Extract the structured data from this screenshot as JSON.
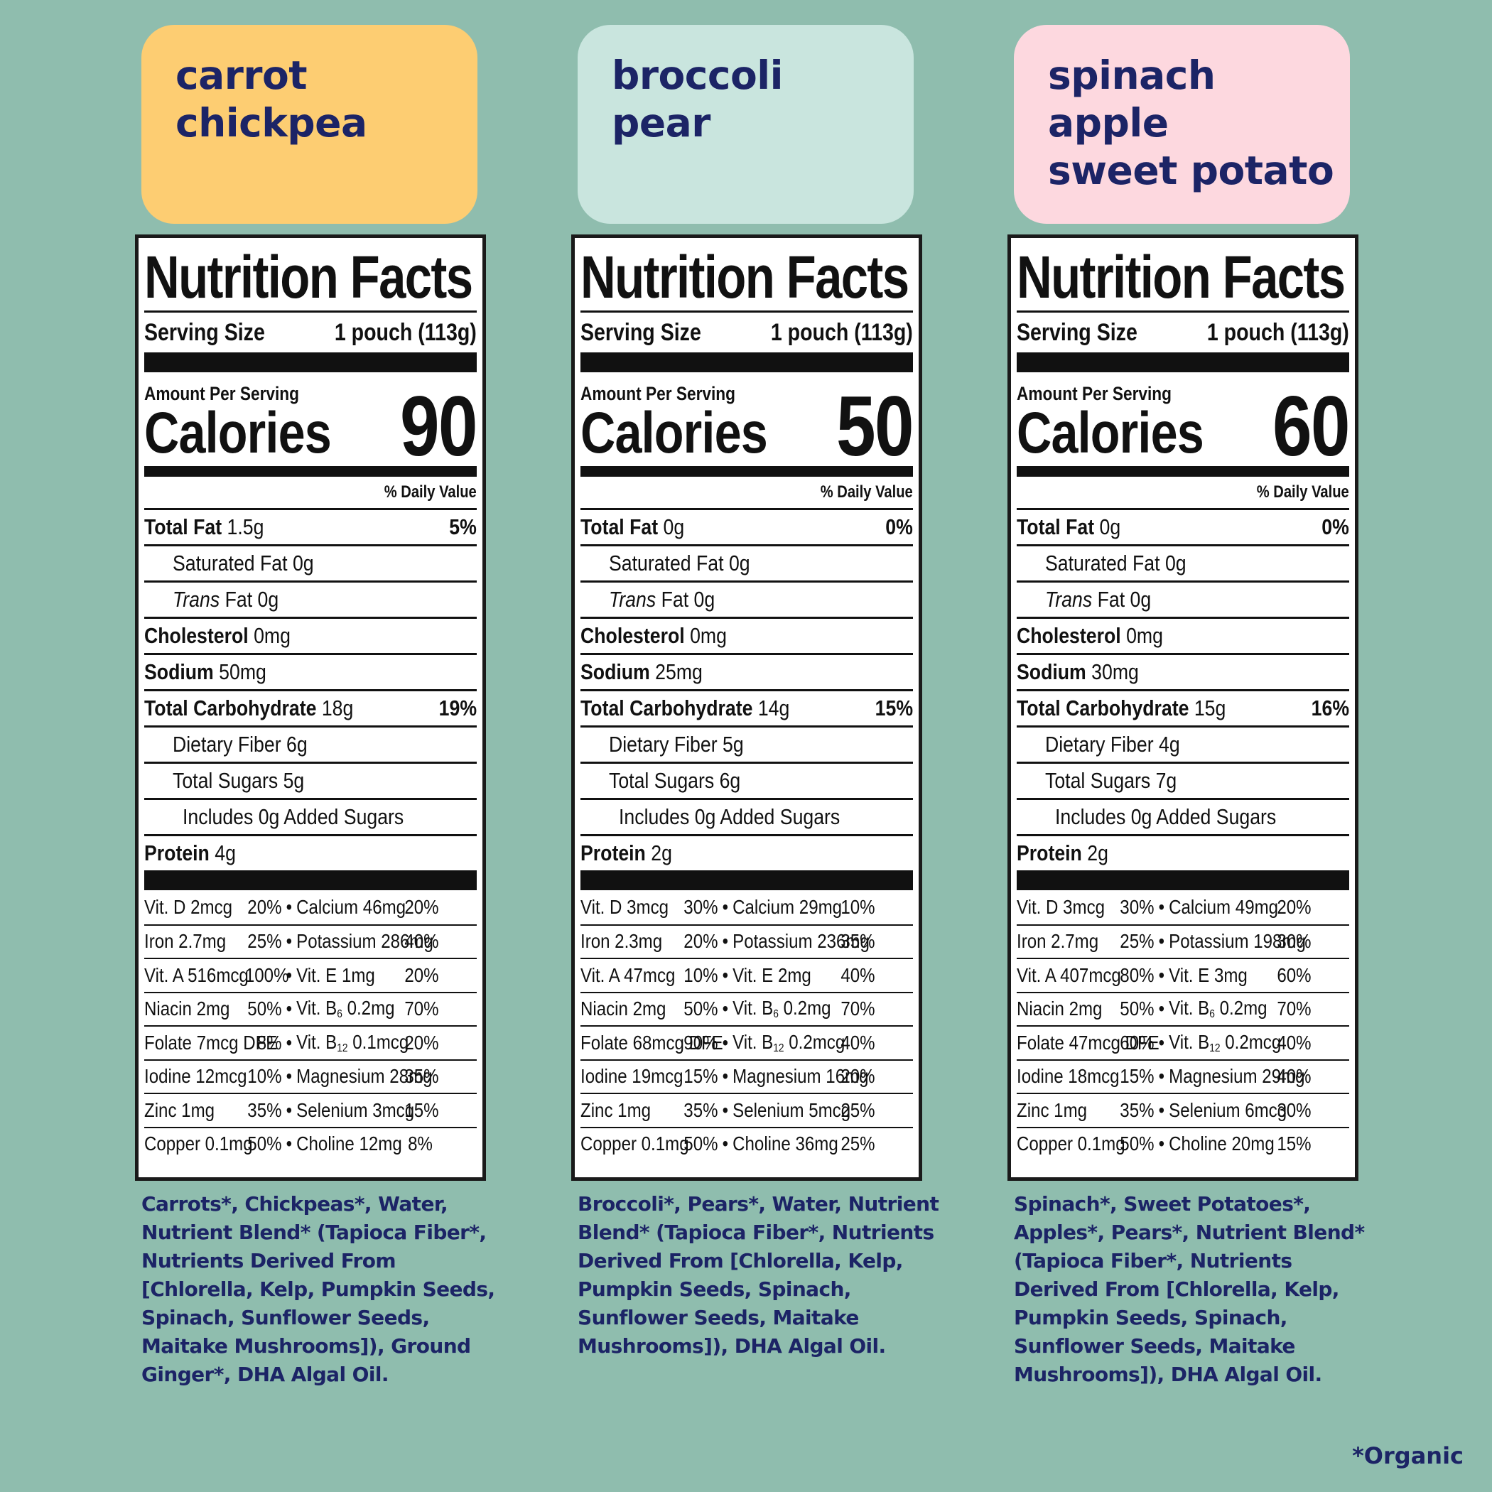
{
  "colors": {
    "background": "#8fbdae",
    "title_text": "#1c2466",
    "card_carrot": "#fdcd72",
    "card_broccoli": "#c9e5de",
    "card_spinach": "#fdd8df"
  },
  "products": [
    {
      "title_lines": [
        "carrot",
        "chickpea"
      ],
      "card_color": "#fdcd72",
      "nutrition": {
        "heading": "Nutrition Facts",
        "serving_label": "Serving Size",
        "serving_value": "1 pouch (113g)",
        "amount_label": "Amount Per Serving",
        "calories_label": "Calories",
        "calories_value": "90",
        "dv_label": "% Daily Value",
        "total_fat": {
          "label": "Total Fat",
          "amount": "1.5g",
          "dv": "5%"
        },
        "sat_fat": "Saturated Fat 0g",
        "trans_fat_italic": "Trans",
        "trans_fat_rest": " Fat 0g",
        "cholesterol": {
          "label": "Cholesterol",
          "amount": "0mg"
        },
        "sodium": {
          "label": "Sodium",
          "amount": "50mg"
        },
        "carbs": {
          "label": "Total Carbohydrate",
          "amount": "18g",
          "dv": "19%"
        },
        "fiber": "Dietary Fiber 6g",
        "sugars": "Total Sugars 5g",
        "added_sugars": "Includes 0g Added Sugars",
        "protein": {
          "label": "Protein",
          "amount": "4g"
        },
        "vitamins": [
          {
            "l": "Vit. D 2mcg",
            "lp": "20%",
            "r": "Calcium 46mg",
            "rp": "20%"
          },
          {
            "l": "Iron 2.7mg",
            "lp": "25%",
            "r": "Potassium 286mg",
            "rp": "40%"
          },
          {
            "l": "Vit. A 516mcg",
            "lp": "100%",
            "r": "Vit. E 1mg",
            "rp": "20%"
          },
          {
            "l": "Niacin 2mg",
            "lp": "50%",
            "r_pre": "Vit. B",
            "r_sub": "6",
            "r_post": " 0.2mg",
            "rp": "70%"
          },
          {
            "l": "Folate 7mcg DFE",
            "lp": "8%",
            "r_pre": "Vit. B",
            "r_sub": "12",
            "r_post": " 0.1mcg",
            "rp": "20%"
          },
          {
            "l": "Iodine 12mcg",
            "lp": "10%",
            "r": "Magnesium 28mg",
            "rp": "35%"
          },
          {
            "l": "Zinc 1mg",
            "lp": "35%",
            "r": "Selenium 3mcg",
            "rp": "15%"
          },
          {
            "l": "Copper 0.1mg",
            "lp": "50%",
            "r": "Choline 12mg",
            "rp": "8%"
          }
        ]
      },
      "ingredient_lines": [
        "Carrots*, Chickpeas*, Water,",
        "Nutrient Blend* (Tapioca Fiber*,",
        "Nutrients Derived From",
        "[Chlorella, Kelp, Pumpkin Seeds,",
        "Spinach, Sunflower Seeds,",
        "Maitake Mushrooms]), Ground",
        "Ginger*, DHA Algal Oil."
      ]
    },
    {
      "title_lines": [
        "broccoli",
        "pear"
      ],
      "card_color": "#c9e5de",
      "nutrition": {
        "heading": "Nutrition Facts",
        "serving_label": "Serving Size",
        "serving_value": "1 pouch (113g)",
        "amount_label": "Amount Per Serving",
        "calories_label": "Calories",
        "calories_value": "50",
        "dv_label": "% Daily Value",
        "total_fat": {
          "label": "Total Fat",
          "amount": "0g",
          "dv": "0%"
        },
        "sat_fat": "Saturated Fat 0g",
        "trans_fat_italic": "Trans",
        "trans_fat_rest": " Fat 0g",
        "cholesterol": {
          "label": "Cholesterol",
          "amount": "0mg"
        },
        "sodium": {
          "label": "Sodium",
          "amount": "25mg"
        },
        "carbs": {
          "label": "Total Carbohydrate",
          "amount": "14g",
          "dv": "15%"
        },
        "fiber": "Dietary Fiber 5g",
        "sugars": "Total Sugars 6g",
        "added_sugars": "Includes 0g Added Sugars",
        "protein": {
          "label": "Protein",
          "amount": "2g"
        },
        "vitamins": [
          {
            "l": "Vit. D 3mcg",
            "lp": "30%",
            "r": "Calcium 29mg",
            "rp": "10%"
          },
          {
            "l": "Iron 2.3mg",
            "lp": "20%",
            "r": "Potassium 236mg",
            "rp": "35%"
          },
          {
            "l": "Vit. A 47mcg",
            "lp": "10%",
            "r": "Vit. E 2mg",
            "rp": "40%"
          },
          {
            "l": "Niacin 2mg",
            "lp": "50%",
            "r_pre": "Vit. B",
            "r_sub": "6",
            "r_post": " 0.2mg",
            "rp": "70%"
          },
          {
            "l": "Folate 68mcg DFE",
            "lp": "90%",
            "r_pre": "Vit. B",
            "r_sub": "12",
            "r_post": " 0.2mcg",
            "rp": "40%"
          },
          {
            "l": "Iodine 19mcg",
            "lp": "15%",
            "r": "Magnesium 16mg",
            "rp": "20%"
          },
          {
            "l": "Zinc 1mg",
            "lp": "35%",
            "r": "Selenium 5mcg",
            "rp": "25%"
          },
          {
            "l": "Copper 0.1mg",
            "lp": "50%",
            "r": "Choline 36mg",
            "rp": "25%"
          }
        ]
      },
      "ingredient_lines": [
        "Broccoli*, Pears*, Water,  Nutrient",
        "Blend* (Tapioca Fiber*, Nutrients",
        "Derived From [Chlorella, Kelp,",
        "Pumpkin Seeds, Spinach,",
        "Sunflower Seeds, Maitake",
        "Mushrooms]), DHA Algal Oil."
      ]
    },
    {
      "title_lines": [
        "spinach",
        "apple",
        "sweet potato"
      ],
      "card_color": "#fdd8df",
      "nutrition": {
        "heading": "Nutrition Facts",
        "serving_label": "Serving Size",
        "serving_value": "1 pouch (113g)",
        "amount_label": "Amount Per Serving",
        "calories_label": "Calories",
        "calories_value": "60",
        "dv_label": "% Daily Value",
        "total_fat": {
          "label": "Total Fat",
          "amount": "0g",
          "dv": "0%"
        },
        "sat_fat": "Saturated Fat 0g",
        "trans_fat_italic": "Trans",
        "trans_fat_rest": " Fat 0g",
        "cholesterol": {
          "label": "Cholesterol",
          "amount": "0mg"
        },
        "sodium": {
          "label": "Sodium",
          "amount": "30mg"
        },
        "carbs": {
          "label": "Total Carbohydrate",
          "amount": "15g",
          "dv": "16%"
        },
        "fiber": "Dietary Fiber 4g",
        "sugars": "Total Sugars 7g",
        "added_sugars": "Includes 0g Added Sugars",
        "protein": {
          "label": "Protein",
          "amount": "2g"
        },
        "vitamins": [
          {
            "l": "Vit. D 3mcg",
            "lp": "30%",
            "r": "Calcium 49mg",
            "rp": "20%"
          },
          {
            "l": "Iron 2.7mg",
            "lp": "25%",
            "r": "Potassium 198mg",
            "rp": "30%"
          },
          {
            "l": "Vit. A 407mcg",
            "lp": "80%",
            "r": "Vit. E 3mg",
            "rp": "60%"
          },
          {
            "l": "Niacin 2mg",
            "lp": "50%",
            "r_pre": "Vit. B",
            "r_sub": "6",
            "r_post": " 0.2mg",
            "rp": "70%"
          },
          {
            "l": "Folate 47mcg DFE",
            "lp": "60%",
            "r_pre": "Vit. B",
            "r_sub": "12",
            "r_post": " 0.2mcg",
            "rp": "40%"
          },
          {
            "l": "Iodine 18mcg",
            "lp": "15%",
            "r": "Magnesium 29mg",
            "rp": "40%"
          },
          {
            "l": "Zinc 1mg",
            "lp": "35%",
            "r": "Selenium 6mcg",
            "rp": "30%"
          },
          {
            "l": "Copper 0.1mg",
            "lp": "50%",
            "r": "Choline 20mg",
            "rp": "15%"
          }
        ]
      },
      "ingredient_lines": [
        "Spinach*, Sweet Potatoes*,",
        "Apples*,  Pears*, Nutrient Blend*",
        "(Tapioca Fiber*, Nutrients",
        "Derived From [Chlorella, Kelp,",
        "Pumpkin Seeds, Spinach,",
        "Sunflower Seeds, Maitake",
        "Mushrooms]), DHA Algal Oil."
      ]
    }
  ],
  "footnote": "*Organic"
}
